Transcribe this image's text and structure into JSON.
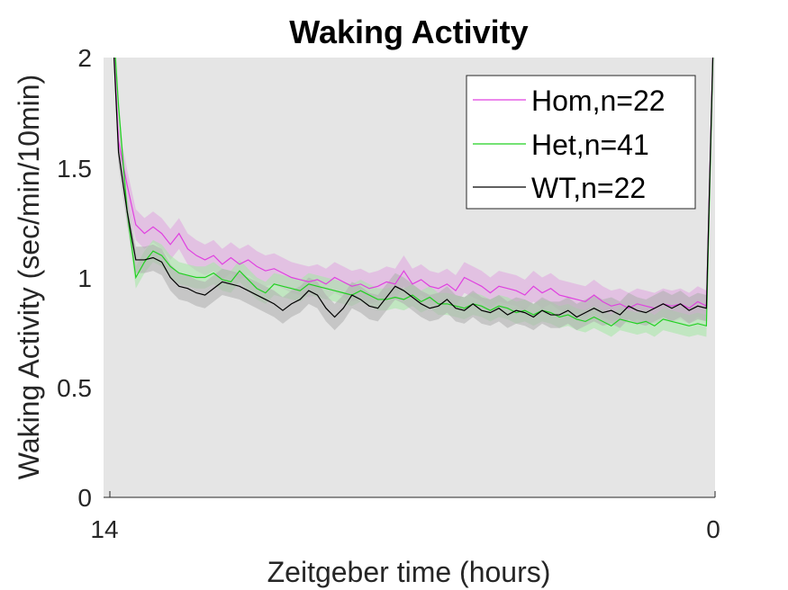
{
  "chart_data": {
    "type": "line",
    "title": "Waking Activity",
    "xlabel": "Zeitgeber time (hours)",
    "ylabel": "Waking Activity (sec/min/10min)",
    "xlim": [
      14,
      0
    ],
    "ylim": [
      0,
      2
    ],
    "xticks": [
      "14",
      "0"
    ],
    "yticks": [
      "0",
      "0.5",
      "1",
      "1.5",
      "2"
    ],
    "grid": false,
    "legend_position": "top-right",
    "background": "#e5e5e5",
    "series": [
      {
        "name": "Hom,n=22",
        "color": "#e040e0",
        "band_color": "#e0a8e0",
        "x": [
          14,
          13.8,
          13.6,
          13.4,
          13.2,
          13.0,
          12.8,
          12.6,
          12.4,
          12.2,
          12.0,
          11.8,
          11.6,
          11.4,
          11.2,
          11.0,
          10.8,
          10.6,
          10.4,
          10.2,
          10.0,
          9.8,
          9.6,
          9.4,
          9.2,
          9.0,
          8.8,
          8.6,
          8.4,
          8.2,
          8.0,
          7.8,
          7.6,
          7.4,
          7.2,
          7.0,
          6.8,
          6.6,
          6.4,
          6.2,
          6.0,
          5.8,
          5.6,
          5.4,
          5.2,
          5.0,
          4.8,
          4.6,
          4.4,
          4.2,
          4.0,
          3.8,
          3.6,
          3.4,
          3.2,
          3.0,
          2.8,
          2.6,
          2.4,
          2.2,
          2.0,
          1.8,
          1.6,
          1.4,
          1.2,
          1.0,
          0.8,
          0.6,
          0.4,
          0.2,
          0.0
        ],
        "values": [
          2.4,
          1.62,
          1.42,
          1.24,
          1.2,
          1.23,
          1.2,
          1.15,
          1.2,
          1.13,
          1.1,
          1.08,
          1.1,
          1.06,
          1.09,
          1.06,
          1.08,
          1.05,
          1.03,
          1.04,
          1.02,
          1.0,
          0.99,
          0.98,
          0.99,
          0.97,
          1.0,
          0.98,
          0.96,
          0.97,
          0.95,
          0.96,
          0.98,
          0.97,
          1.03,
          0.97,
          0.99,
          0.96,
          0.95,
          0.97,
          0.94,
          1.0,
          0.98,
          0.96,
          0.93,
          0.96,
          0.95,
          0.94,
          0.92,
          0.96,
          0.93,
          0.95,
          0.92,
          0.91,
          0.9,
          0.89,
          0.92,
          0.89,
          0.87,
          0.88,
          0.86,
          0.88,
          0.87,
          0.86,
          0.88,
          0.87,
          0.88,
          0.86,
          0.89,
          0.87,
          2.4
        ],
        "err": 0.07
      },
      {
        "name": "Het,n=41",
        "color": "#22d022",
        "band_color": "#a8e6a8",
        "x": [
          14,
          13.8,
          13.6,
          13.4,
          13.2,
          13.0,
          12.8,
          12.6,
          12.4,
          12.2,
          12.0,
          11.8,
          11.6,
          11.4,
          11.2,
          11.0,
          10.8,
          10.6,
          10.4,
          10.2,
          10.0,
          9.8,
          9.6,
          9.4,
          9.2,
          9.0,
          8.8,
          8.6,
          8.4,
          8.2,
          8.0,
          7.8,
          7.6,
          7.4,
          7.2,
          7.0,
          6.8,
          6.6,
          6.4,
          6.2,
          6.0,
          5.8,
          5.6,
          5.4,
          5.2,
          5.0,
          4.8,
          4.6,
          4.4,
          4.2,
          4.0,
          3.8,
          3.6,
          3.4,
          3.2,
          3.0,
          2.8,
          2.6,
          2.4,
          2.2,
          2.0,
          1.8,
          1.6,
          1.4,
          1.2,
          1.0,
          0.8,
          0.6,
          0.4,
          0.2,
          0.0
        ],
        "values": [
          2.4,
          1.78,
          1.3,
          1.0,
          1.07,
          1.12,
          1.1,
          1.05,
          1.02,
          1.01,
          1.0,
          1.0,
          1.02,
          0.99,
          0.98,
          1.03,
          0.99,
          0.95,
          0.93,
          0.97,
          0.96,
          0.95,
          0.94,
          0.97,
          0.96,
          0.95,
          0.94,
          0.93,
          0.92,
          0.94,
          0.92,
          0.9,
          0.9,
          0.91,
          0.9,
          0.92,
          0.89,
          0.91,
          0.88,
          0.88,
          0.87,
          0.86,
          0.88,
          0.87,
          0.85,
          0.87,
          0.86,
          0.84,
          0.85,
          0.83,
          0.85,
          0.84,
          0.82,
          0.83,
          0.81,
          0.8,
          0.82,
          0.8,
          0.78,
          0.81,
          0.8,
          0.79,
          0.8,
          0.78,
          0.81,
          0.8,
          0.79,
          0.78,
          0.79,
          0.78,
          2.4
        ],
        "err": 0.05
      },
      {
        "name": "WT,n=22",
        "color": "#000000",
        "band_color": "#b0b0b0",
        "x": [
          14,
          13.8,
          13.6,
          13.4,
          13.2,
          13.0,
          12.8,
          12.6,
          12.4,
          12.2,
          12.0,
          11.8,
          11.6,
          11.4,
          11.2,
          11.0,
          10.8,
          10.6,
          10.4,
          10.2,
          10.0,
          9.8,
          9.6,
          9.4,
          9.2,
          9.0,
          8.8,
          8.6,
          8.4,
          8.2,
          8.0,
          7.8,
          7.6,
          7.4,
          7.2,
          7.0,
          6.8,
          6.6,
          6.4,
          6.2,
          6.0,
          5.8,
          5.6,
          5.4,
          5.2,
          5.0,
          4.8,
          4.6,
          4.4,
          4.2,
          4.0,
          3.8,
          3.6,
          3.4,
          3.2,
          3.0,
          2.8,
          2.6,
          2.4,
          2.2,
          2.0,
          1.8,
          1.6,
          1.4,
          1.2,
          1.0,
          0.8,
          0.6,
          0.4,
          0.2,
          0.0
        ],
        "values": [
          2.4,
          1.57,
          1.3,
          1.08,
          1.08,
          1.09,
          1.07,
          1.0,
          0.96,
          0.95,
          0.93,
          0.92,
          0.95,
          0.98,
          0.97,
          0.96,
          0.94,
          0.92,
          0.9,
          0.88,
          0.85,
          0.88,
          0.9,
          0.94,
          0.92,
          0.86,
          0.82,
          0.86,
          0.92,
          0.9,
          0.87,
          0.86,
          0.91,
          0.96,
          0.94,
          0.91,
          0.88,
          0.86,
          0.87,
          0.9,
          0.86,
          0.85,
          0.88,
          0.85,
          0.84,
          0.86,
          0.83,
          0.85,
          0.84,
          0.82,
          0.85,
          0.83,
          0.83,
          0.85,
          0.82,
          0.84,
          0.86,
          0.84,
          0.85,
          0.83,
          0.87,
          0.85,
          0.84,
          0.86,
          0.88,
          0.86,
          0.88,
          0.85,
          0.87,
          0.86,
          2.4
        ],
        "err": 0.06
      }
    ]
  }
}
